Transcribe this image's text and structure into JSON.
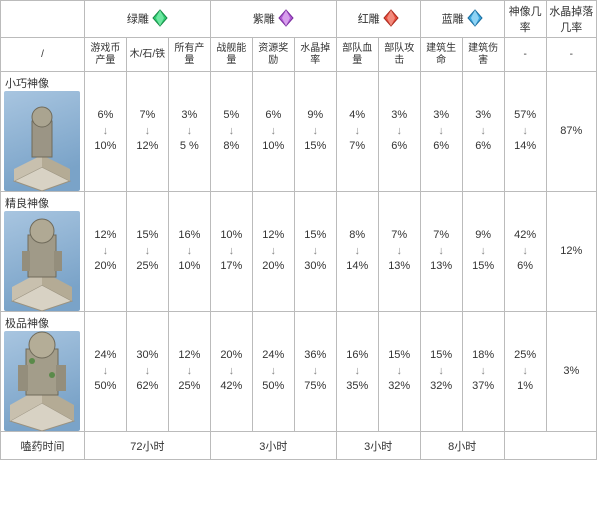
{
  "columns": {
    "statue_header": "神像",
    "groups": [
      {
        "label": "绿雕",
        "gem_color": "#2ecc71",
        "sub": [
          "游戏币产量",
          "木/石/铁",
          "所有产量"
        ]
      },
      {
        "label": "紫雕",
        "gem_color": "#b05ad6",
        "sub": [
          "战舰能量",
          "资源奖励",
          "水晶掉率"
        ]
      },
      {
        "label": "红雕",
        "gem_color": "#e74c3c",
        "sub": [
          "部队血量",
          "部队攻击"
        ]
      },
      {
        "label": "蓝雕",
        "gem_color": "#3ba7e0",
        "sub": [
          "建筑生命",
          "建筑伤害"
        ]
      }
    ],
    "prob_cols": [
      "神像几率",
      "水晶掉落几率"
    ],
    "slash": "/",
    "dash": "-"
  },
  "rows": [
    {
      "name": "小巧神像",
      "cells": [
        "6%↓10%",
        "7%↓12%",
        "3%↓5 %",
        "5%↓8%",
        "6%↓10%",
        "9%↓15%",
        "4%↓7%",
        "3%↓6%",
        "3%↓6%",
        "3%↓6%"
      ],
      "prob": [
        "57%↓14%",
        "87%"
      ]
    },
    {
      "name": "精良神像",
      "cells": [
        "12%↓20%",
        "15%↓25%",
        "16%↓10%",
        "10%↓17%",
        "12%↓20%",
        "15%↓30%",
        "8%↓14%",
        "7%↓13%",
        "7%↓13%",
        "9%↓15%"
      ],
      "prob": [
        "42%↓6%",
        "12%"
      ]
    },
    {
      "name": "极品神像",
      "cells": [
        "24%↓50%",
        "30%↓62%",
        "12%↓25%",
        "20%↓42%",
        "24%↓50%",
        "36%↓75%",
        "16%↓35%",
        "15%↓32%",
        "15%↓32%",
        "18%↓37%"
      ],
      "prob": [
        "25%↓1%",
        "3%"
      ]
    }
  ],
  "duration": {
    "label": "嗑药时间",
    "green": "72小时",
    "purple": "3小时",
    "red": "3小时",
    "blue": "8小时"
  },
  "arrow_glyph": "↓"
}
